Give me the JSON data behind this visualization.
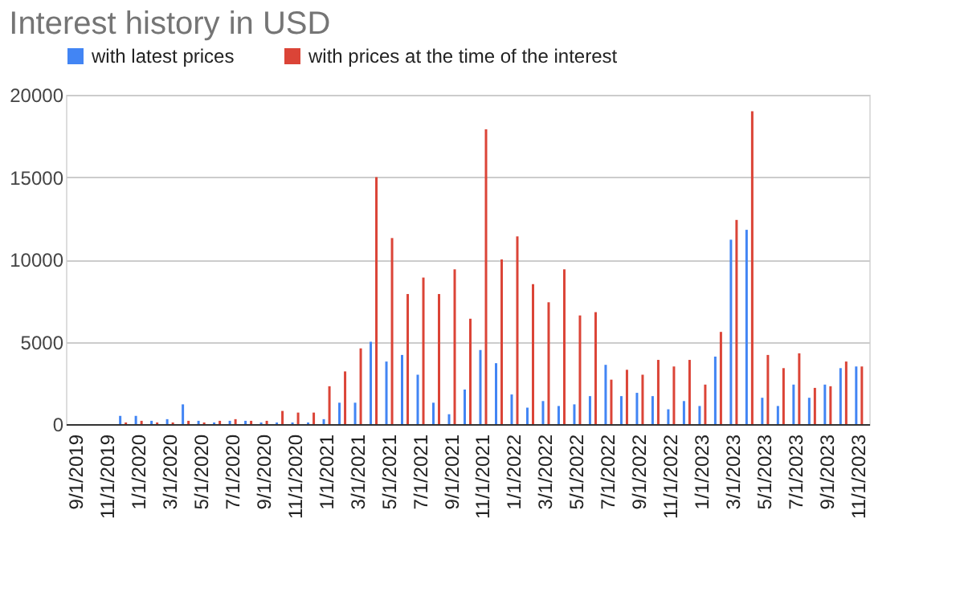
{
  "chart_data": {
    "type": "bar",
    "title": "Interest history in USD",
    "categories": [
      "9/1/2019",
      null,
      "11/1/2019",
      null,
      "1/1/2020",
      null,
      "3/1/2020",
      null,
      "5/1/2020",
      null,
      "7/1/2020",
      null,
      "9/1/2020",
      null,
      "11/1/2020",
      null,
      "1/1/2021",
      null,
      "3/1/2021",
      null,
      "5/1/2021",
      null,
      "7/1/2021",
      null,
      "9/1/2021",
      null,
      "11/1/2021",
      null,
      "1/1/2022",
      null,
      "3/1/2022",
      null,
      "5/1/2022",
      null,
      "7/1/2022",
      null,
      "9/1/2022",
      null,
      "11/1/2022",
      null,
      "1/1/2023",
      null,
      "3/1/2023",
      null,
      "5/1/2023",
      null,
      "7/1/2023",
      null,
      "9/1/2023",
      null,
      "11/1/2023"
    ],
    "series": [
      {
        "name": "with latest prices",
        "color": "#4285f4",
        "values": [
          0,
          0,
          0,
          500,
          500,
          200,
          300,
          1200,
          200,
          100,
          200,
          200,
          100,
          100,
          100,
          100,
          300,
          1300,
          1300,
          5000,
          3800,
          4200,
          3000,
          1300,
          600,
          2100,
          4500,
          3700,
          1800,
          1000,
          1400,
          1100,
          1200,
          1700,
          3600,
          1700,
          1900,
          1700,
          900,
          1400,
          1100,
          4100,
          11200,
          11800,
          1600,
          1100,
          2400,
          1600,
          2400,
          3400,
          3500
        ]
      },
      {
        "name": "with prices at the time of the interest",
        "color": "#db4437",
        "values": [
          0,
          0,
          0,
          100,
          200,
          100,
          100,
          200,
          100,
          200,
          300,
          200,
          200,
          800,
          700,
          700,
          2300,
          3200,
          4600,
          15000,
          11300,
          7900,
          8900,
          7900,
          9400,
          6400,
          17900,
          10000,
          11400,
          8500,
          7400,
          9400,
          6600,
          6800,
          2700,
          3300,
          3000,
          3900,
          3500,
          3900,
          2400,
          5600,
          12400,
          19000,
          4200,
          3400,
          4300,
          2200,
          2300,
          3800,
          3500
        ]
      }
    ],
    "ylim": [
      0,
      20000
    ],
    "yticks": [
      0,
      5000,
      10000,
      15000,
      20000
    ],
    "grid": "y",
    "legend": "top"
  }
}
